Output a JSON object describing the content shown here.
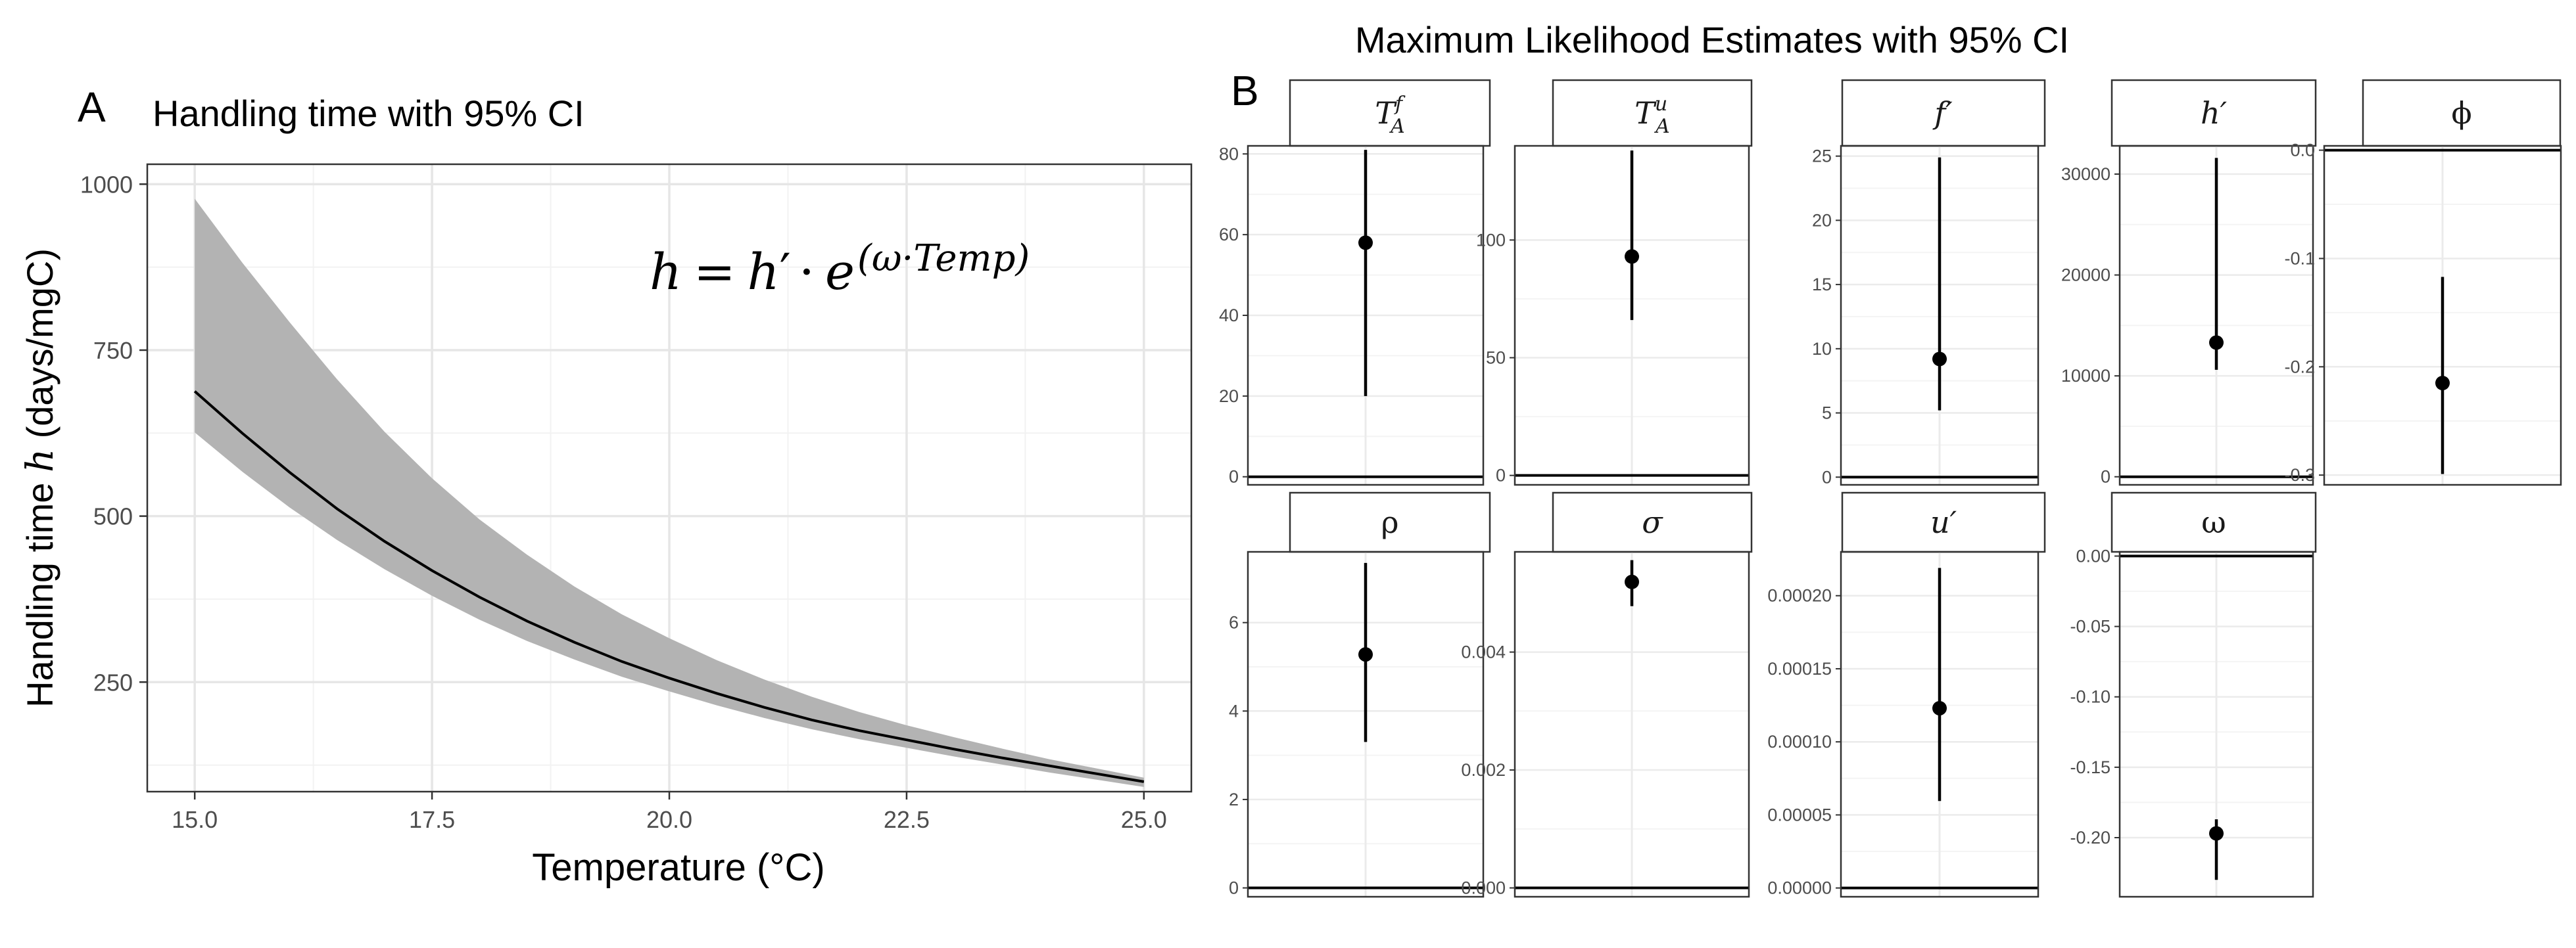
{
  "panel_a": {
    "tag": "A",
    "formula": {
      "lhs": "h",
      "eq": "=",
      "h": "h",
      "prime": "′",
      "dot": "·",
      "e": "e",
      "exponent": "(ω·Temp)"
    }
  },
  "panel_b": {
    "tag": "B",
    "title": "Maximum Likelihood Estimates with 95% CI"
  },
  "chart_data": [
    {
      "type": "line",
      "title": "Handling time with 95% CI",
      "xlabel": "Temperature (°C)",
      "ylabel": {
        "prefix": "Handling time ",
        "var": "h",
        "suffix": " (days/mgC)"
      },
      "xlim": [
        14.5,
        25.5
      ],
      "ylim": [
        85,
        1030
      ],
      "x_ticks": [
        15.0,
        17.5,
        20.0,
        22.5,
        25.0
      ],
      "x_tick_labels": [
        "15.0",
        "17.5",
        "20.0",
        "22.5",
        "25.0"
      ],
      "y_ticks": [
        250,
        500,
        750,
        1000
      ],
      "y_tick_labels": [
        "250",
        "500",
        "750",
        "1000"
      ],
      "grid": true,
      "series": [
        {
          "x": [
            15,
            15.5,
            16,
            16.5,
            17,
            17.5,
            18,
            18.5,
            19,
            19.5,
            20,
            20.5,
            21,
            21.5,
            22,
            22.5,
            23,
            23.5,
            24,
            24.5,
            25
          ],
          "values": [
            688,
            625,
            566,
            511,
            462,
            418,
            378,
            342,
            310,
            281,
            256,
            233,
            212,
            193,
            177,
            163,
            149,
            136,
            124,
            112,
            100
          ],
          "lower": [
            626,
            567,
            513,
            464,
            420,
            380,
            344,
            312,
            284,
            258,
            236,
            215,
            196,
            179,
            164,
            151,
            138,
            126,
            114,
            103,
            92
          ],
          "upper": [
            978,
            882,
            792,
            706,
            627,
            557,
            495,
            442,
            394,
            352,
            316,
            283,
            254,
            228,
            205,
            185,
            167,
            150,
            134,
            120,
            106
          ]
        }
      ],
      "colors": {
        "ribbon": "#b3b3b3",
        "line": "#000000"
      }
    },
    {
      "type": "errorbar",
      "title": "Maximum Likelihood Estimates with 95% CI",
      "facets": [
        {
          "label": "T_A^f",
          "estimate": 58,
          "lower": 20,
          "upper": 81,
          "ylim": [
            -2,
            82
          ],
          "ticks": [
            0,
            20,
            40,
            60,
            80
          ],
          "tick_labels": [
            "0",
            "20",
            "40",
            "60",
            "80"
          ],
          "hline": 0
        },
        {
          "label": "T_A^u",
          "estimate": 93,
          "lower": 66,
          "upper": 138,
          "ylim": [
            -4,
            140
          ],
          "ticks": [
            0,
            50,
            100
          ],
          "tick_labels": [
            "0",
            "50",
            "100"
          ],
          "hline": 0
        },
        {
          "label": "f′",
          "estimate": 9.2,
          "lower": 5.2,
          "upper": 24.9,
          "ylim": [
            -0.6,
            25.8
          ],
          "ticks": [
            0,
            5,
            10,
            15,
            20,
            25
          ],
          "tick_labels": [
            "0",
            "5",
            "10",
            "15",
            "20",
            "25"
          ],
          "hline": 0
        },
        {
          "label": "h′",
          "estimate": 13300,
          "lower": 10600,
          "upper": 31600,
          "ylim": [
            -800,
            32800
          ],
          "ticks": [
            0,
            10000,
            20000,
            30000
          ],
          "tick_labels": [
            "0",
            "10000",
            "20000",
            "30000"
          ],
          "hline": 0
        },
        {
          "label": "ϕ",
          "estimate": -0.215,
          "lower": -0.299,
          "upper": -0.117,
          "ylim": [
            -0.309,
            0.004
          ],
          "ticks": [
            0.0,
            -0.1,
            -0.2,
            -0.3
          ],
          "tick_labels": [
            "0.0",
            "-0.1",
            "-0.2",
            "-0.3"
          ],
          "hline": 0
        },
        {
          "label": "ρ",
          "estimate": 5.28,
          "lower": 3.3,
          "upper": 7.35,
          "ylim": [
            -0.2,
            7.6
          ],
          "ticks": [
            0,
            2,
            4,
            6
          ],
          "tick_labels": [
            "0",
            "2",
            "4",
            "6"
          ],
          "hline": 0
        },
        {
          "label": "σ",
          "estimate": 0.00519,
          "lower": 0.00478,
          "upper": 0.00556,
          "ylim": [
            -0.00015,
            0.0057
          ],
          "ticks": [
            0.0,
            0.002,
            0.004
          ],
          "tick_labels": [
            "0.000",
            "0.002",
            "0.004"
          ],
          "hline": 0
        },
        {
          "label": "u′",
          "estimate": 0.000123,
          "lower": 5.95e-05,
          "upper": 0.000219,
          "ylim": [
            -6e-06,
            0.00023
          ],
          "ticks": [
            0.0,
            5e-05,
            0.0001,
            0.00015,
            0.0002
          ],
          "tick_labels": [
            "0.00000",
            "0.00005",
            "0.00010",
            "0.00015",
            "0.00020"
          ],
          "hline": 0
        },
        {
          "label": "ω",
          "estimate": -0.197,
          "lower": -0.23,
          "upper": -0.187,
          "ylim": [
            -0.242,
            0.003
          ],
          "ticks": [
            0.0,
            -0.05,
            -0.1,
            -0.15,
            -0.2
          ],
          "tick_labels": [
            "0.00",
            "-0.05",
            "-0.10",
            "-0.15",
            "-0.20"
          ],
          "hline": 0
        }
      ],
      "colors": {
        "strip_fill": "#ffffff",
        "point": "#000000",
        "grid": "#ebebeb"
      }
    }
  ]
}
